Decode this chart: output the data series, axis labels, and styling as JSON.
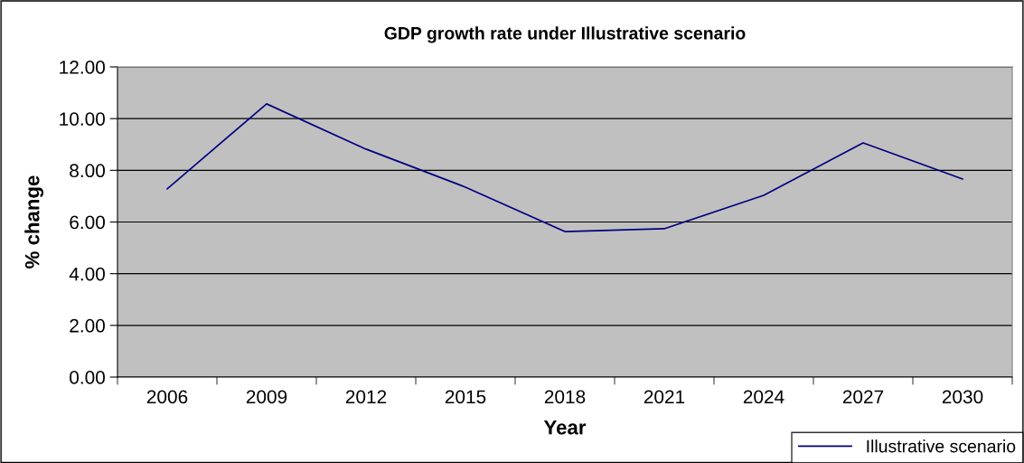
{
  "chart_data": {
    "type": "line",
    "title": "GDP growth rate under Illustrative scenario",
    "xlabel": "Year",
    "ylabel": "% change",
    "categories": [
      "2006",
      "2009",
      "2012",
      "2015",
      "2018",
      "2021",
      "2024",
      "2027",
      "2030"
    ],
    "series": [
      {
        "name": "Illustrative scenario",
        "color": "#000080",
        "values": [
          7.28,
          10.57,
          8.82,
          7.35,
          5.63,
          5.74,
          7.03,
          9.06,
          7.66
        ]
      }
    ],
    "ylim": [
      0,
      12
    ],
    "yticks": [
      {
        "value": 0,
        "label": "0.00"
      },
      {
        "value": 2,
        "label": "2.00"
      },
      {
        "value": 4,
        "label": "4.00"
      },
      {
        "value": 6,
        "label": "6.00"
      },
      {
        "value": 8,
        "label": "8.00"
      },
      {
        "value": 10,
        "label": "10.00"
      },
      {
        "value": 12,
        "label": "12.00"
      }
    ],
    "grid": "y",
    "legend": "bottom right",
    "marker": "none",
    "line_style": "solid"
  }
}
